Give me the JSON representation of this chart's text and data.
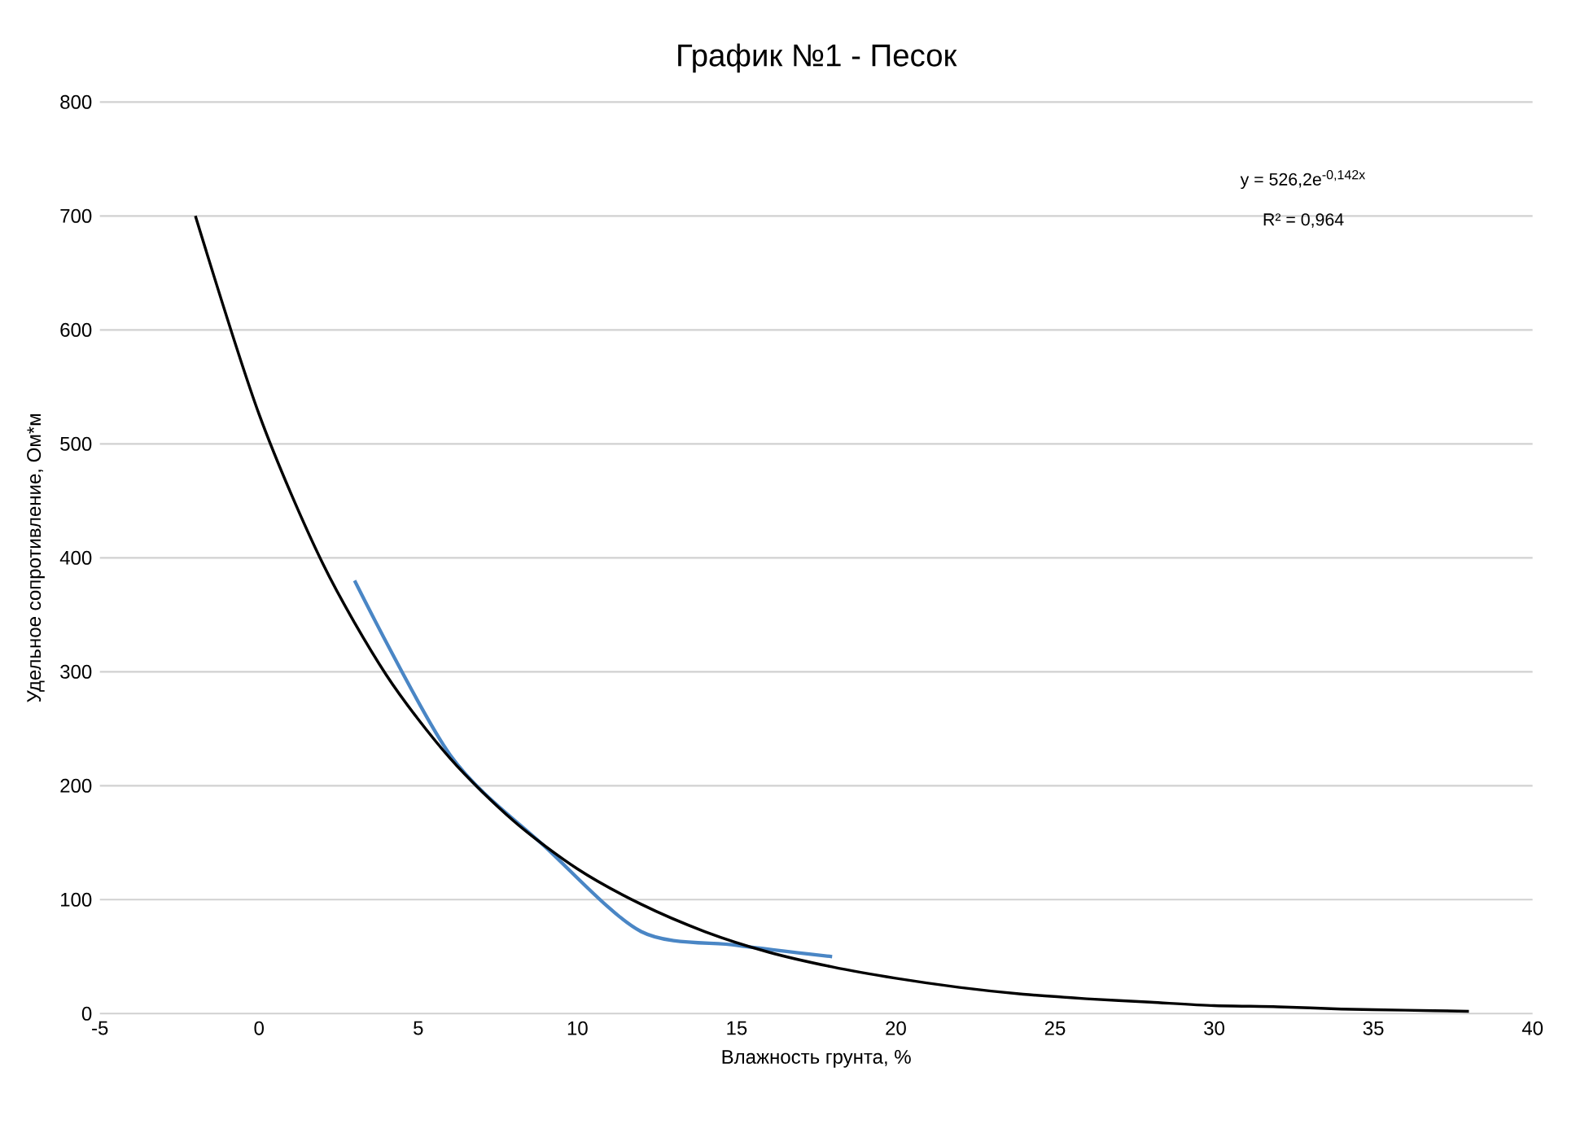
{
  "chart_data": {
    "type": "line",
    "title": "График №1 - Песок",
    "xlabel": "Влажность грунта, %",
    "ylabel": "Удельное сопротивление, Ом*м",
    "xlim": [
      -5,
      40
    ],
    "xticks": [
      -5,
      0,
      5,
      10,
      15,
      20,
      25,
      30,
      35,
      40
    ],
    "ylim": [
      0,
      800
    ],
    "yticks": [
      0,
      100,
      200,
      300,
      400,
      500,
      600,
      700,
      800
    ],
    "grid": "y",
    "annotations": [
      "y = 526,2e$^{-0,142x}$",
      "R² = 0,964"
    ],
    "series": [
      {
        "color": "#4a86c5",
        "x": [
          3,
          6,
          9,
          12,
          15,
          18
        ],
        "values": [
          380,
          227,
          146,
          72,
          60,
          50
        ]
      },
      {
        "type": "line",
        "color": "#000000",
        "x": [
          -2,
          0,
          2,
          4,
          6,
          8,
          10,
          12,
          14,
          16,
          18,
          20,
          22,
          24,
          26,
          28,
          30,
          32,
          34,
          36,
          38
        ],
        "values": [
          700,
          526,
          395,
          297,
          224,
          169,
          127,
          96,
          72,
          54,
          41,
          31,
          23,
          17,
          13,
          10,
          7,
          6,
          4,
          3,
          2
        ]
      }
    ]
  }
}
